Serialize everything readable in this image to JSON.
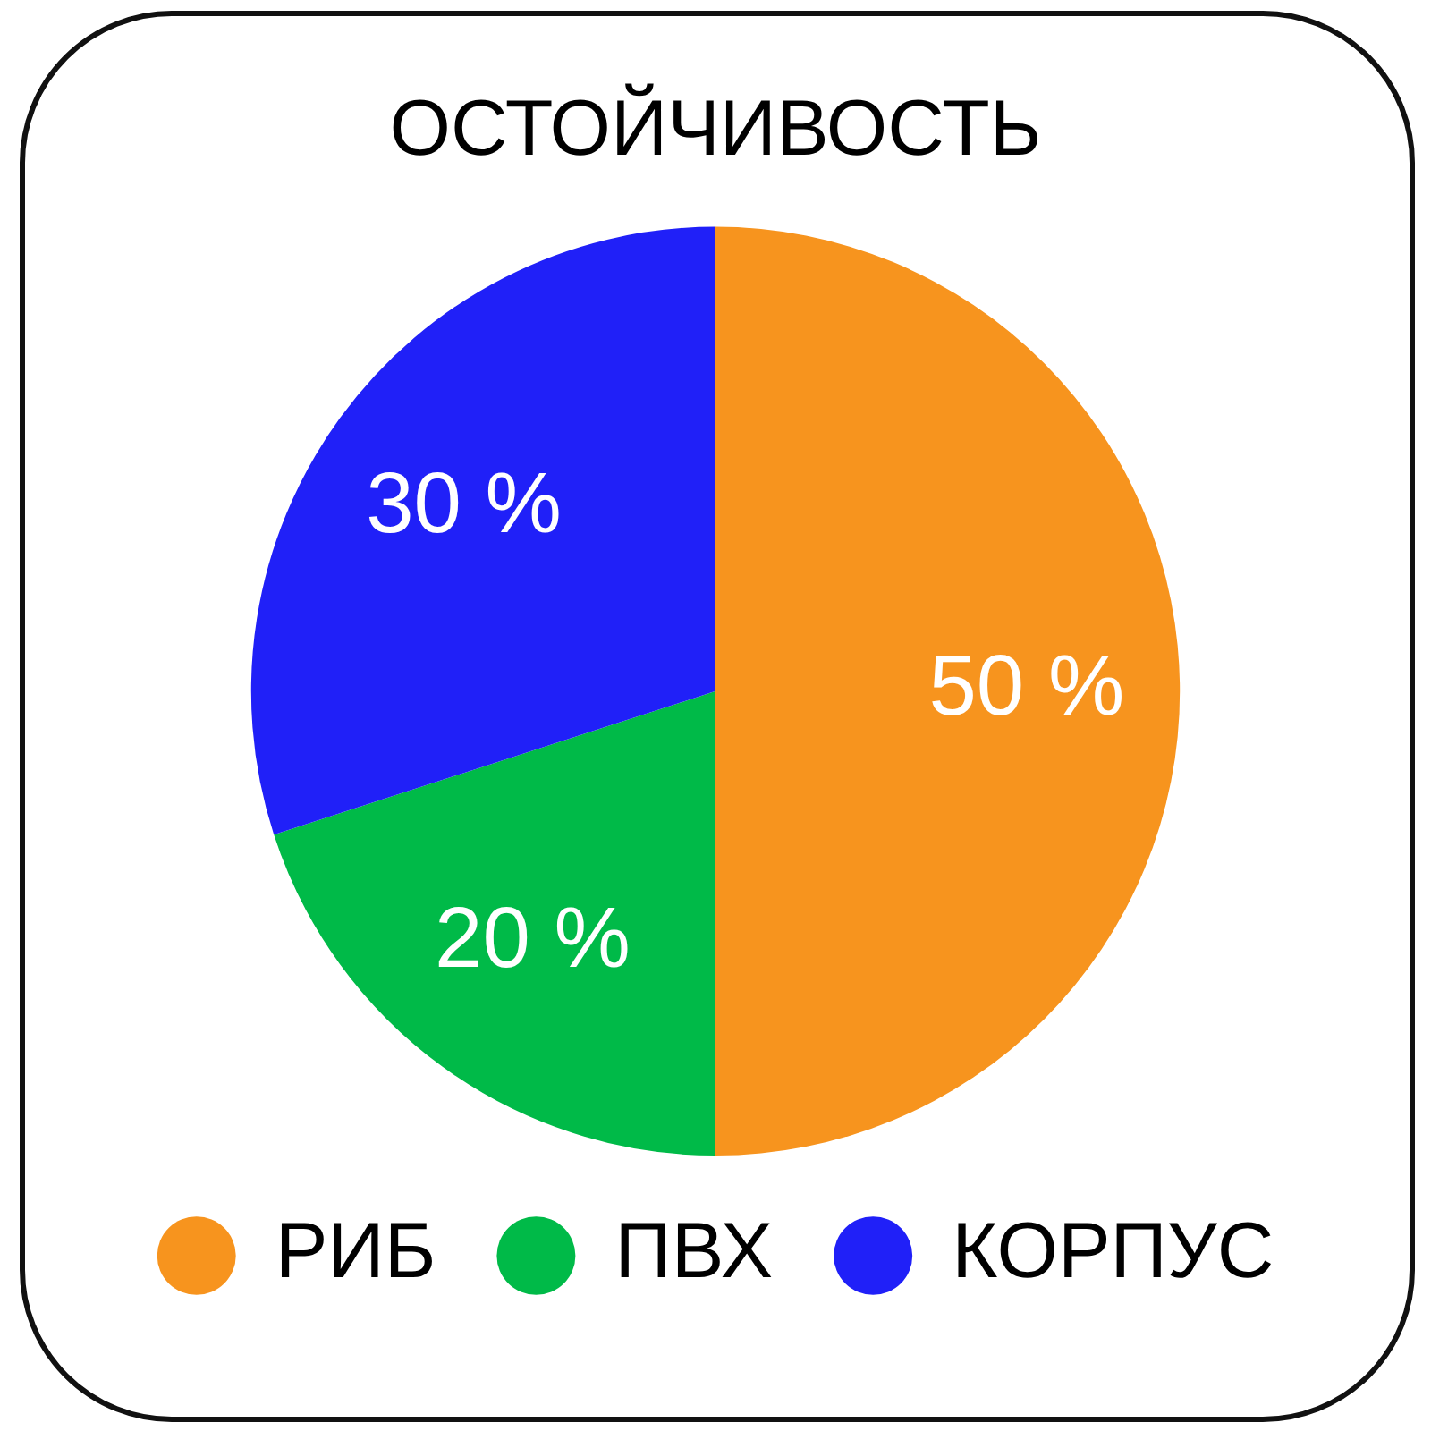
{
  "chart_data": {
    "type": "pie",
    "title": "ОСТОЙЧИВОСТЬ",
    "categories": [
      "РИБ",
      "ПВХ",
      "КОРПУС"
    ],
    "values": [
      50,
      20,
      30
    ],
    "colors": [
      "#f7941e",
      "#00ba48",
      "#2020f8"
    ],
    "value_labels": [
      "50 %",
      "20 %",
      "30 %"
    ],
    "legend": "bottom"
  }
}
